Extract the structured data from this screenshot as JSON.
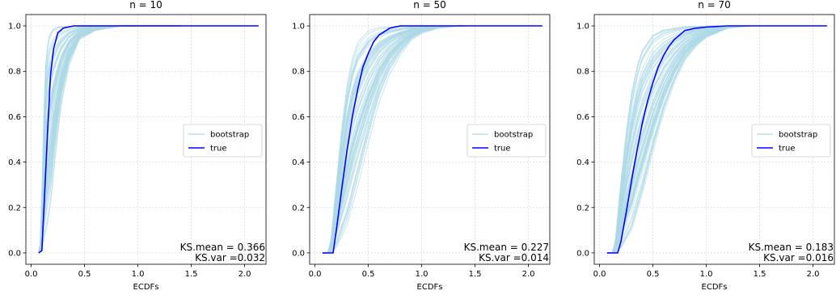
{
  "figure": {
    "xlabel": "ECDFs",
    "legend_location": "center-right"
  },
  "chart_data": [
    {
      "type": "line",
      "title": "n = 10",
      "xlabel": "ECDFs",
      "ylabel": "",
      "xlim": [
        -0.05,
        2.2
      ],
      "ylim": [
        -0.05,
        1.05
      ],
      "xticks": [
        "0.0",
        "0.5",
        "1.0",
        "1.5",
        "2.0"
      ],
      "yticks": [
        "0.0",
        "0.2",
        "0.4",
        "0.6",
        "0.8",
        "1.0"
      ],
      "grid": true,
      "legend": [
        {
          "label": "bootstrap",
          "color": "#add8e6"
        },
        {
          "label": "true",
          "color": "#0000ff"
        }
      ],
      "annotations": [
        "KS.mean = 0.366",
        "KS.var =0.032"
      ],
      "series": [
        {
          "name": "true",
          "color": "#0000ff",
          "x": [
            0.07,
            0.1,
            0.12,
            0.15,
            0.18,
            0.21,
            0.25,
            0.3,
            0.4,
            0.6,
            1.0,
            2.13
          ],
          "y": [
            0.0,
            0.01,
            0.2,
            0.5,
            0.78,
            0.9,
            0.97,
            0.99,
            1.0,
            1.0,
            1.0,
            1.0
          ]
        },
        {
          "name": "bootstrap",
          "color": "#add8e6",
          "family": true,
          "x": [
            0.07,
            0.09,
            0.11,
            0.13,
            0.16,
            0.2,
            0.25,
            0.32,
            0.45,
            0.7,
            1.0
          ],
          "y": [
            0.0,
            0.05,
            0.4,
            0.8,
            0.95,
            0.99,
            1.0,
            1.0,
            1.0,
            1.0,
            1.0
          ]
        },
        {
          "name": "bootstrap",
          "color": "#add8e6",
          "family": true,
          "x": [
            0.07,
            0.1,
            0.14,
            0.18,
            0.22,
            0.28,
            0.35,
            0.45,
            0.6,
            0.85,
            1.1
          ],
          "y": [
            0.0,
            0.02,
            0.1,
            0.2,
            0.4,
            0.65,
            0.82,
            0.94,
            0.98,
            1.0,
            1.0
          ]
        }
      ]
    },
    {
      "type": "line",
      "title": "n = 50",
      "xlabel": "ECDFs",
      "ylabel": "",
      "xlim": [
        -0.05,
        2.2
      ],
      "ylim": [
        -0.05,
        1.05
      ],
      "xticks": [
        "0.0",
        "0.5",
        "1.0",
        "1.5",
        "2.0"
      ],
      "yticks": [
        "0.0",
        "0.2",
        "0.4",
        "0.6",
        "0.8",
        "1.0"
      ],
      "grid": true,
      "legend": [
        {
          "label": "bootstrap",
          "color": "#add8e6"
        },
        {
          "label": "true",
          "color": "#0000ff"
        }
      ],
      "annotations": [
        "KS.mean = 0.227",
        "KS.var =0.014"
      ],
      "series": [
        {
          "name": "true",
          "color": "#0000ff",
          "x": [
            0.07,
            0.12,
            0.17,
            0.2,
            0.25,
            0.3,
            0.35,
            0.4,
            0.45,
            0.5,
            0.55,
            0.6,
            0.7,
            0.8,
            1.0,
            2.13
          ],
          "y": [
            0.0,
            0.0,
            0.0,
            0.1,
            0.28,
            0.45,
            0.6,
            0.72,
            0.82,
            0.88,
            0.93,
            0.96,
            0.99,
            1.0,
            1.0,
            1.0
          ]
        },
        {
          "name": "bootstrap",
          "color": "#add8e6",
          "family": true,
          "x": [
            0.07,
            0.12,
            0.15,
            0.2,
            0.25,
            0.3,
            0.35,
            0.4,
            0.5,
            0.6,
            0.8,
            1.0
          ],
          "y": [
            0.0,
            0.0,
            0.05,
            0.3,
            0.55,
            0.75,
            0.87,
            0.94,
            0.99,
            1.0,
            1.0,
            1.0
          ]
        },
        {
          "name": "bootstrap",
          "color": "#add8e6",
          "family": true,
          "x": [
            0.07,
            0.15,
            0.2,
            0.3,
            0.4,
            0.5,
            0.6,
            0.7,
            0.8,
            0.9,
            1.0,
            1.15,
            1.35
          ],
          "y": [
            0.0,
            0.0,
            0.02,
            0.12,
            0.3,
            0.5,
            0.68,
            0.8,
            0.88,
            0.94,
            0.97,
            0.99,
            1.0
          ]
        }
      ]
    },
    {
      "type": "line",
      "title": "n = 70",
      "xlabel": "ECDFs",
      "ylabel": "",
      "xlim": [
        -0.05,
        2.2
      ],
      "ylim": [
        -0.05,
        1.05
      ],
      "xticks": [
        "0.0",
        "0.5",
        "1.0",
        "1.5",
        "2.0"
      ],
      "yticks": [
        "0.0",
        "0.2",
        "0.4",
        "0.6",
        "0.8",
        "1.0"
      ],
      "grid": true,
      "legend": [
        {
          "label": "bootstrap",
          "color": "#add8e6"
        },
        {
          "label": "true",
          "color": "#0000ff"
        }
      ],
      "annotations": [
        "KS.mean = 0.183",
        "KS.var =0.016"
      ],
      "series": [
        {
          "name": "true",
          "color": "#0000ff",
          "x": [
            0.07,
            0.12,
            0.17,
            0.2,
            0.25,
            0.3,
            0.35,
            0.4,
            0.45,
            0.5,
            0.55,
            0.6,
            0.65,
            0.7,
            0.75,
            0.8,
            0.9,
            1.0,
            1.2,
            1.5,
            2.13
          ],
          "y": [
            0.0,
            0.0,
            0.0,
            0.05,
            0.18,
            0.32,
            0.45,
            0.57,
            0.67,
            0.75,
            0.82,
            0.87,
            0.91,
            0.94,
            0.96,
            0.98,
            0.99,
            0.995,
            1.0,
            1.0,
            1.0
          ]
        },
        {
          "name": "bootstrap",
          "color": "#add8e6",
          "family": true,
          "x": [
            0.07,
            0.12,
            0.15,
            0.2,
            0.25,
            0.3,
            0.35,
            0.4,
            0.5,
            0.6,
            0.8,
            1.0
          ],
          "y": [
            0.0,
            0.0,
            0.05,
            0.3,
            0.52,
            0.7,
            0.82,
            0.9,
            0.97,
            0.99,
            1.0,
            1.0
          ]
        },
        {
          "name": "bootstrap",
          "color": "#add8e6",
          "family": true,
          "x": [
            0.07,
            0.15,
            0.2,
            0.3,
            0.4,
            0.5,
            0.6,
            0.7,
            0.8,
            0.9,
            1.0,
            1.2,
            1.4
          ],
          "y": [
            0.0,
            0.0,
            0.02,
            0.1,
            0.26,
            0.45,
            0.62,
            0.75,
            0.85,
            0.91,
            0.95,
            0.99,
            1.0
          ]
        }
      ]
    }
  ]
}
